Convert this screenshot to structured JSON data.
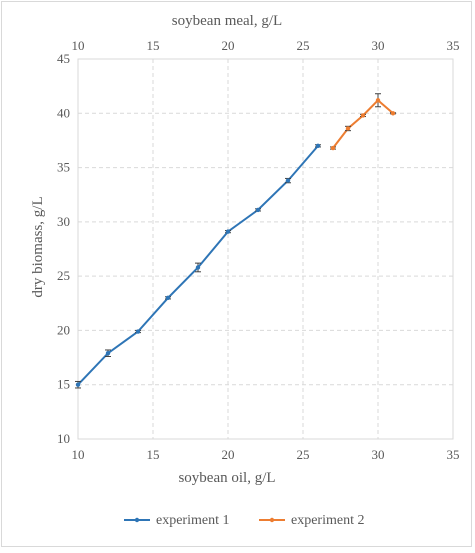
{
  "chart_data": {
    "type": "line",
    "top_axis": {
      "label": "soybean meal, g/L",
      "ticks": [
        "10",
        "15",
        "20",
        "25",
        "30",
        "35"
      ],
      "range": [
        10,
        35
      ]
    },
    "x_axis": {
      "label": "soybean oil, g/L",
      "ticks": [
        "10",
        "15",
        "20",
        "25",
        "30",
        "35"
      ],
      "range": [
        10,
        35
      ]
    },
    "y_axis": {
      "label": "dry biomass, g/L",
      "ticks": [
        "10",
        "15",
        "20",
        "25",
        "30",
        "35",
        "40",
        "45"
      ],
      "range": [
        10,
        45
      ]
    },
    "grid": true,
    "legend_position": "bottom",
    "series": [
      {
        "name": "experiment 1",
        "color": "#2e75b6",
        "axis": "bottom",
        "x": [
          10,
          12,
          14,
          16,
          18,
          20,
          22,
          24,
          26
        ],
        "y": [
          15.0,
          17.9,
          19.9,
          23.0,
          25.8,
          29.1,
          31.1,
          33.8,
          37.0
        ],
        "err": [
          0.3,
          0.3,
          0.1,
          0.1,
          0.4,
          0.1,
          0.1,
          0.2,
          0.1
        ]
      },
      {
        "name": "experiment 2",
        "color": "#ed7d31",
        "axis": "top",
        "x": [
          27,
          28,
          29,
          30,
          31
        ],
        "y": [
          36.8,
          38.6,
          39.8,
          41.2,
          40.0
        ],
        "err": [
          0.1,
          0.2,
          0.1,
          0.6,
          0.05
        ]
      }
    ]
  }
}
